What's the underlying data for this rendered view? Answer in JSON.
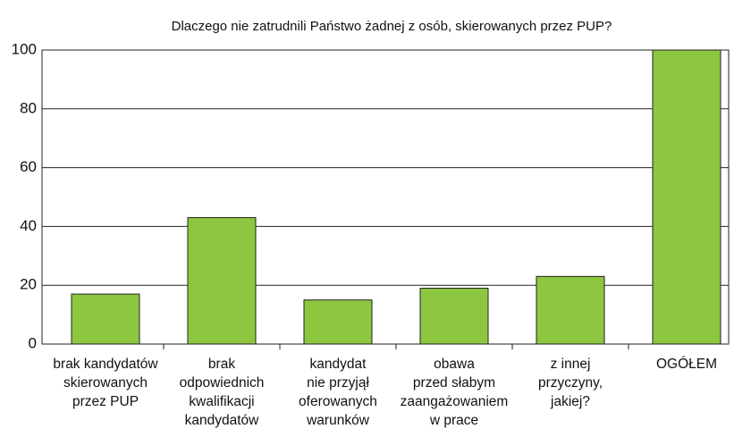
{
  "chart_data": {
    "type": "bar",
    "title": "Dlaczego nie zatrudnili Państwo żadnej z osób, skierowanych przez PUP?",
    "categories": [
      [
        "brak kandydatów",
        "skierowanych",
        "przez PUP"
      ],
      [
        "brak",
        "odpowiednich",
        "kwalifikacji",
        "kandydatów"
      ],
      [
        "kandydat",
        "nie przyjął",
        "oferowanych",
        "warunków"
      ],
      [
        "obawa",
        "przed słabym",
        "zaangażowaniem",
        "w prace"
      ],
      [
        "z innej",
        "przyczyny,",
        "jakiej?"
      ],
      [
        "OGÓŁEM"
      ]
    ],
    "values": [
      17,
      43,
      15,
      19,
      23,
      100
    ],
    "color": "#8dc63f",
    "ylim": [
      0,
      100
    ],
    "yticks": [
      0,
      20,
      40,
      60,
      80,
      100
    ],
    "grid": true
  }
}
